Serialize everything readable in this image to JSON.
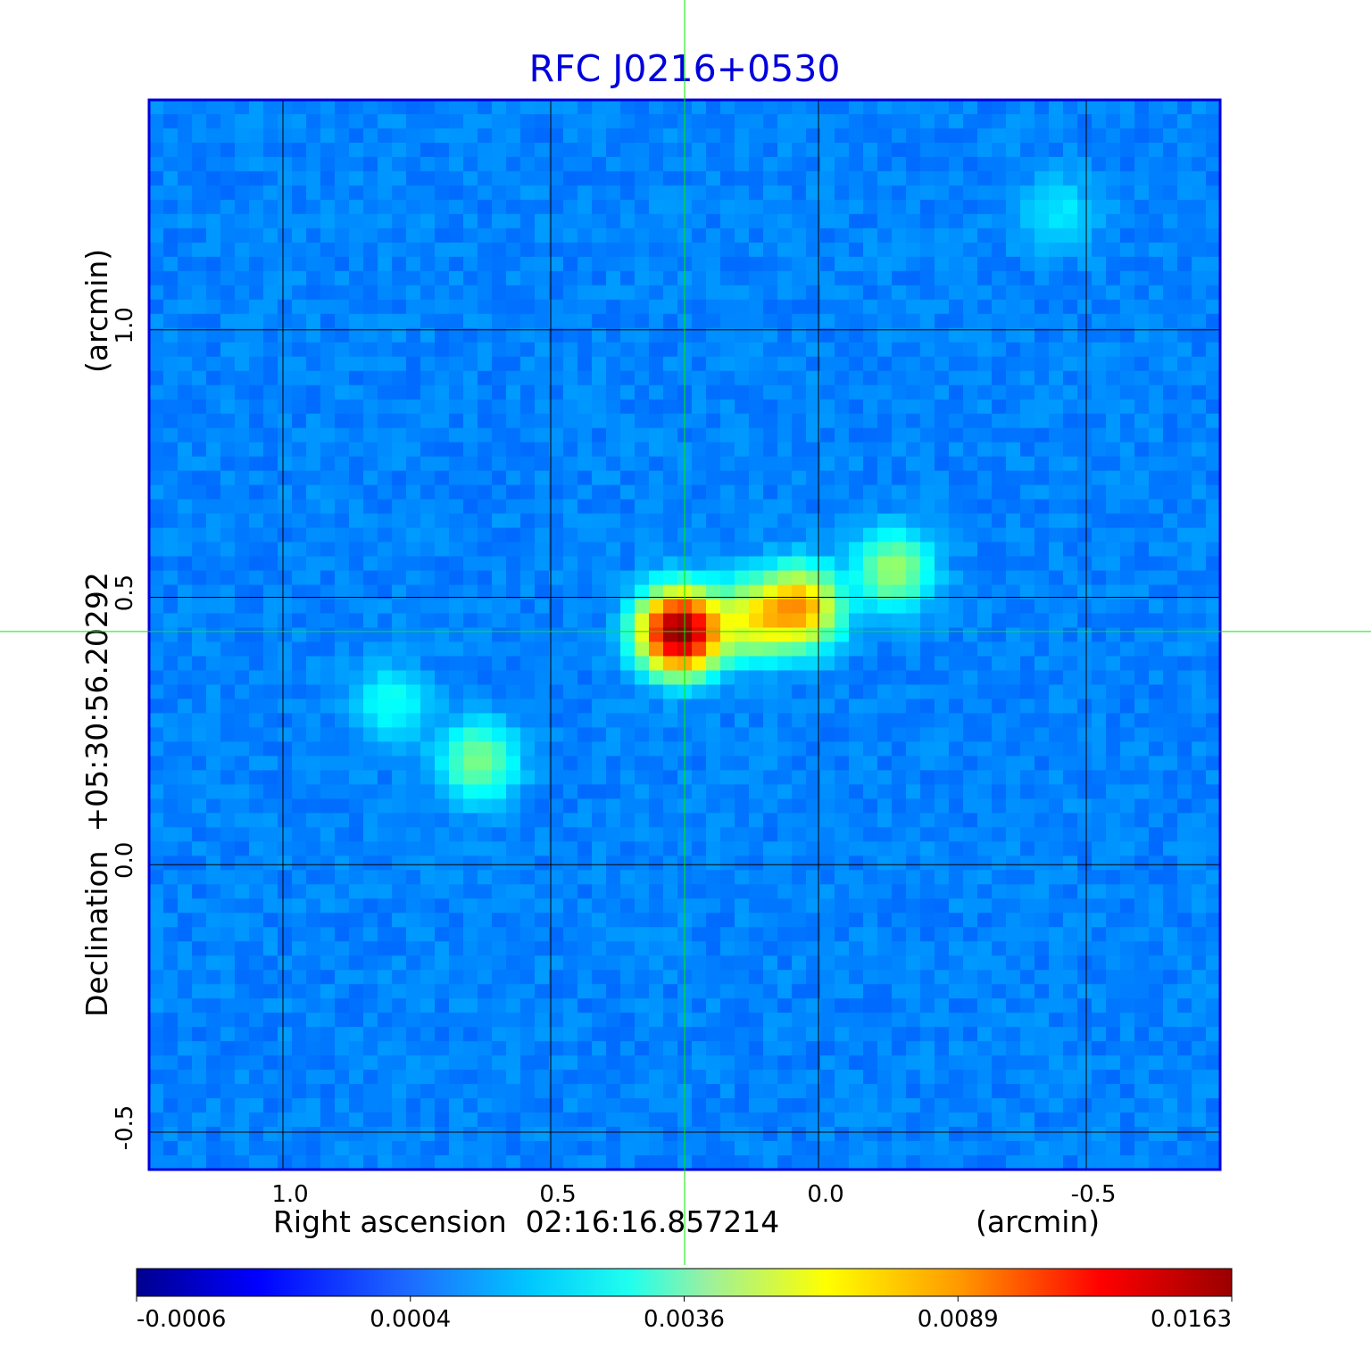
{
  "chart_data": {
    "type": "heatmap",
    "title": "RFC J0216+0530",
    "xlabel": "Right ascension  02:16:16.857214",
    "xunit": "(arcmin)",
    "ylabel": "Declination  +05:30:56.20292",
    "yunit": "(arcmin)",
    "xlim": [
      1.25,
      -0.75
    ],
    "ylim": [
      -0.57,
      1.43
    ],
    "xticks": [
      {
        "value": 1.0,
        "label": "1.0"
      },
      {
        "value": 0.5,
        "label": "0.5"
      },
      {
        "value": 0.0,
        "label": "0.0"
      },
      {
        "value": -0.5,
        "label": "-0.5"
      }
    ],
    "yticks": [
      {
        "value": 1.0,
        "label": "1.0"
      },
      {
        "value": 0.5,
        "label": "0.5"
      },
      {
        "value": 0.0,
        "label": "0.0"
      },
      {
        "value": -0.5,
        "label": "-0.5"
      }
    ],
    "grid": true,
    "crosshair": {
      "x": 0.25,
      "y": 0.436
    },
    "colormap": "jet",
    "colorbar": {
      "ticks": [
        "-0.0006",
        "0.0004",
        "0.0036",
        "0.0089",
        "0.0163"
      ],
      "min": -0.0006,
      "max": 0.0163
    },
    "sources": [
      {
        "x": 0.258,
        "y": 0.436,
        "peak": 0.0163
      },
      {
        "x": 0.035,
        "y": 0.48,
        "peak": 0.007
      },
      {
        "x": 0.12,
        "y": 0.46,
        "peak": 0.0045
      },
      {
        "x": -0.14,
        "y": 0.55,
        "peak": 0.003
      },
      {
        "x": 0.635,
        "y": 0.195,
        "peak": 0.0026
      },
      {
        "x": 0.8,
        "y": 0.3,
        "peak": 0.0012
      },
      {
        "x": -0.45,
        "y": 1.22,
        "peak": 0.0008
      }
    ],
    "colors": {
      "title": "#0000dd",
      "frame": "#0000dd",
      "crosshair": "#00ee00",
      "grid": "#000000"
    }
  }
}
